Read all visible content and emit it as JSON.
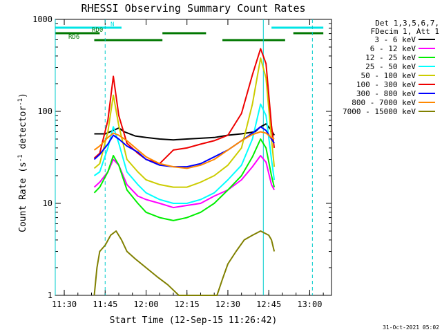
{
  "chart_data": {
    "type": "line",
    "title": "RHESSI Observing Summary Count Rates",
    "xlabel": "Start Time (12-Sep-15 11:26:42)",
    "ylabel": "Count Rate (s",
    "ylabel_sup": "-1",
    "ylabel_tail": " detector",
    "ylabel_close": ")",
    "footer": "31-Oct-2021 05:02",
    "yscale": "log",
    "ylim": [
      1,
      1000
    ],
    "xlim_minutes": [
      "11:26:42",
      "13:08:00"
    ],
    "y_ticks": [
      {
        "value": 1,
        "label": "1"
      },
      {
        "value": 10,
        "label": "10"
      },
      {
        "value": 100,
        "label": "100"
      },
      {
        "value": 1000,
        "label": "1000"
      }
    ],
    "x_ticks": [
      {
        "time": "11:30",
        "label": "11:30"
      },
      {
        "time": "11:45",
        "label": "11:45"
      },
      {
        "time": "12:00",
        "label": "12:00"
      },
      {
        "time": "12:15",
        "label": "12:15"
      },
      {
        "time": "12:30",
        "label": "12:30"
      },
      {
        "time": "12:45",
        "label": "12:45"
      },
      {
        "time": "13:00",
        "label": "13:00"
      }
    ],
    "legend": {
      "placement": "right-outside",
      "header": [
        "Det 1,3,5,6,7,",
        "FDecim 1, Att 1"
      ]
    },
    "flags": [
      {
        "label": "N",
        "color": "#00e5e5",
        "segments": [
          [
            "11:26:42",
            "11:51"
          ],
          [
            "12:46",
            "13:05"
          ]
        ]
      },
      {
        "label": "RD0",
        "color": "#007700",
        "segments": [
          [
            "11:26:42",
            "11:43"
          ],
          [
            "12:06",
            "12:22"
          ],
          [
            "12:54",
            "13:05"
          ]
        ]
      },
      {
        "label": "RD6",
        "color": "#007700",
        "segments": [
          [
            "11:41",
            "12:06"
          ],
          [
            "12:28",
            "12:51"
          ]
        ]
      }
    ],
    "markers": [
      {
        "time": "11:45",
        "style": "dashed",
        "color": "#00cccc"
      },
      {
        "time": "12:43",
        "style": "solid",
        "color": "#00cccc"
      },
      {
        "time": "13:01",
        "style": "dashed",
        "color": "#00cccc"
      },
      {
        "time": "11:26:42",
        "style": "solid",
        "color": "#00cccc"
      }
    ],
    "series": [
      {
        "name": "3 - 6 keV",
        "color": "#000000",
        "points": [
          [
            "11:41",
            57
          ],
          [
            "11:45",
            57
          ],
          [
            "11:48",
            62
          ],
          [
            "11:50",
            66
          ],
          [
            "11:52",
            60
          ],
          [
            "11:56",
            54
          ],
          [
            "12:00",
            52
          ],
          [
            "12:05",
            50
          ],
          [
            "12:10",
            49
          ],
          [
            "12:15",
            50
          ],
          [
            "12:20",
            51
          ],
          [
            "12:25",
            52
          ],
          [
            "12:30",
            55
          ],
          [
            "12:35",
            57
          ],
          [
            "12:40",
            60
          ],
          [
            "12:42",
            68
          ],
          [
            "12:44",
            73
          ],
          [
            "12:46",
            62
          ],
          [
            "12:47",
            55
          ]
        ]
      },
      {
        "name": "6 - 12 keV",
        "color": "#ff00ff",
        "points": [
          [
            "11:41",
            15
          ],
          [
            "11:43",
            17
          ],
          [
            "11:46",
            22
          ],
          [
            "11:48",
            30
          ],
          [
            "11:50",
            26
          ],
          [
            "11:53",
            16
          ],
          [
            "11:57",
            12
          ],
          [
            "12:00",
            11
          ],
          [
            "12:05",
            10
          ],
          [
            "12:10",
            9
          ],
          [
            "12:15",
            9.5
          ],
          [
            "12:20",
            10
          ],
          [
            "12:25",
            12
          ],
          [
            "12:30",
            14
          ],
          [
            "12:35",
            18
          ],
          [
            "12:39",
            25
          ],
          [
            "12:42",
            33
          ],
          [
            "12:44",
            28
          ],
          [
            "12:46",
            16
          ],
          [
            "12:47",
            14
          ]
        ]
      },
      {
        "name": "12 - 25 keV",
        "color": "#00ee00",
        "points": [
          [
            "11:41",
            13
          ],
          [
            "11:43",
            15
          ],
          [
            "11:46",
            22
          ],
          [
            "11:48",
            33
          ],
          [
            "11:50",
            26
          ],
          [
            "11:53",
            14
          ],
          [
            "11:57",
            10
          ],
          [
            "12:00",
            8
          ],
          [
            "12:05",
            7
          ],
          [
            "12:10",
            6.5
          ],
          [
            "12:15",
            7
          ],
          [
            "12:20",
            8
          ],
          [
            "12:25",
            10
          ],
          [
            "12:30",
            14
          ],
          [
            "12:35",
            20
          ],
          [
            "12:39",
            32
          ],
          [
            "12:42",
            50
          ],
          [
            "12:44",
            40
          ],
          [
            "12:46",
            20
          ],
          [
            "12:47",
            15
          ]
        ]
      },
      {
        "name": "25 - 50 keV",
        "color": "#00ffff",
        "points": [
          [
            "11:41",
            20
          ],
          [
            "11:43",
            22
          ],
          [
            "11:46",
            40
          ],
          [
            "11:48",
            68
          ],
          [
            "11:50",
            45
          ],
          [
            "11:53",
            22
          ],
          [
            "11:57",
            16
          ],
          [
            "12:00",
            13
          ],
          [
            "12:05",
            11
          ],
          [
            "12:10",
            10
          ],
          [
            "12:15",
            10
          ],
          [
            "12:20",
            11
          ],
          [
            "12:25",
            13
          ],
          [
            "12:30",
            18
          ],
          [
            "12:35",
            26
          ],
          [
            "12:39",
            50
          ],
          [
            "12:42",
            120
          ],
          [
            "12:44",
            90
          ],
          [
            "12:46",
            30
          ],
          [
            "12:47",
            18
          ]
        ]
      },
      {
        "name": "50 - 100 keV",
        "color": "#cccc00",
        "points": [
          [
            "11:41",
            24
          ],
          [
            "11:43",
            27
          ],
          [
            "11:46",
            60
          ],
          [
            "11:48",
            150
          ],
          [
            "11:50",
            70
          ],
          [
            "11:53",
            30
          ],
          [
            "11:57",
            22
          ],
          [
            "12:00",
            18
          ],
          [
            "12:05",
            16
          ],
          [
            "12:10",
            15
          ],
          [
            "12:15",
            15
          ],
          [
            "12:20",
            17
          ],
          [
            "12:25",
            20
          ],
          [
            "12:30",
            26
          ],
          [
            "12:35",
            40
          ],
          [
            "12:39",
            120
          ],
          [
            "12:42",
            380
          ],
          [
            "12:44",
            230
          ],
          [
            "12:46",
            50
          ],
          [
            "12:47",
            25
          ]
        ]
      },
      {
        "name": "100 - 300 keV",
        "color": "#ee0000",
        "points": [
          [
            "11:41",
            31
          ],
          [
            "11:43",
            35
          ],
          [
            "11:46",
            80
          ],
          [
            "11:48",
            240
          ],
          [
            "11:50",
            90
          ],
          [
            "11:53",
            45
          ],
          [
            "11:57",
            35
          ],
          [
            "12:00",
            30
          ],
          [
            "12:05",
            27
          ],
          [
            "12:10",
            38
          ],
          [
            "12:15",
            40
          ],
          [
            "12:20",
            44
          ],
          [
            "12:25",
            48
          ],
          [
            "12:30",
            55
          ],
          [
            "12:35",
            95
          ],
          [
            "12:39",
            250
          ],
          [
            "12:42",
            480
          ],
          [
            "12:44",
            330
          ],
          [
            "12:46",
            70
          ],
          [
            "12:47",
            40
          ]
        ]
      },
      {
        "name": "300 - 800 keV",
        "color": "#0000ff",
        "points": [
          [
            "11:41",
            30
          ],
          [
            "11:43",
            34
          ],
          [
            "11:46",
            44
          ],
          [
            "11:48",
            55
          ],
          [
            "11:50",
            50
          ],
          [
            "11:53",
            42
          ],
          [
            "11:57",
            36
          ],
          [
            "12:00",
            30
          ],
          [
            "12:05",
            26
          ],
          [
            "12:10",
            25
          ],
          [
            "12:15",
            25
          ],
          [
            "12:20",
            27
          ],
          [
            "12:25",
            32
          ],
          [
            "12:30",
            38
          ],
          [
            "12:35",
            48
          ],
          [
            "12:39",
            58
          ],
          [
            "12:42",
            68
          ],
          [
            "12:44",
            62
          ],
          [
            "12:46",
            50
          ],
          [
            "12:47",
            45
          ]
        ]
      },
      {
        "name": "800 - 7000 keV",
        "color": "#ff8800",
        "points": [
          [
            "11:41",
            38
          ],
          [
            "11:43",
            42
          ],
          [
            "11:46",
            52
          ],
          [
            "11:48",
            58
          ],
          [
            "11:50",
            55
          ],
          [
            "11:53",
            48
          ],
          [
            "11:57",
            38
          ],
          [
            "12:00",
            32
          ],
          [
            "12:05",
            27
          ],
          [
            "12:10",
            25
          ],
          [
            "12:15",
            24
          ],
          [
            "12:20",
            26
          ],
          [
            "12:25",
            30
          ],
          [
            "12:30",
            38
          ],
          [
            "12:35",
            48
          ],
          [
            "12:39",
            56
          ],
          [
            "12:42",
            60
          ],
          [
            "12:44",
            58
          ],
          [
            "12:46",
            52
          ],
          [
            "12:47",
            50
          ]
        ]
      },
      {
        "name": "7000 - 15000 keV",
        "color": "#808000",
        "points": [
          [
            "11:41",
            1
          ],
          [
            "11:42",
            2
          ],
          [
            "11:43",
            3
          ],
          [
            "11:45",
            3.5
          ],
          [
            "11:47",
            4.5
          ],
          [
            "11:49",
            5
          ],
          [
            "11:51",
            4
          ],
          [
            "11:53",
            3
          ],
          [
            "11:56",
            2.5
          ],
          [
            "12:00",
            2
          ],
          [
            "12:04",
            1.6
          ],
          [
            "12:08",
            1.3
          ],
          [
            "12:12",
            1
          ],
          [
            "12:26",
            1
          ],
          [
            "12:28",
            1.5
          ],
          [
            "12:30",
            2.2
          ],
          [
            "12:33",
            3
          ],
          [
            "12:36",
            4
          ],
          [
            "12:39",
            4.5
          ],
          [
            "12:42",
            5
          ],
          [
            "12:45",
            4.5
          ],
          [
            "12:46",
            4
          ],
          [
            "12:47",
            3
          ]
        ]
      }
    ]
  }
}
